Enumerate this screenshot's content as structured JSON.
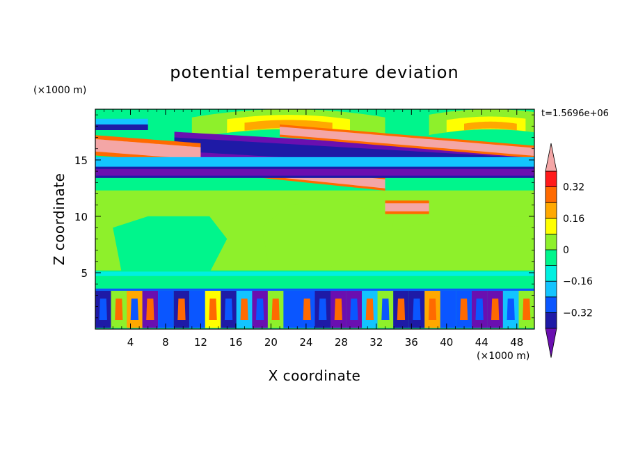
{
  "chart_data": {
    "type": "heatmap",
    "title": "potential temperature deviation",
    "xlabel": "X coordinate",
    "ylabel": "Z coordinate",
    "x_unit": "(×1000 m)",
    "y_unit": "(×1000 m)",
    "time_label": "t=1.5696e+06",
    "xlim": [
      0,
      50
    ],
    "ylim": [
      0,
      19.5
    ],
    "x_ticks": [
      4,
      8,
      12,
      16,
      20,
      24,
      28,
      32,
      36,
      40,
      44,
      48
    ],
    "y_ticks": [
      5,
      10,
      15
    ],
    "colorbar": {
      "levels": [
        -0.4,
        -0.32,
        -0.24,
        -0.16,
        -0.08,
        0,
        0.08,
        0.16,
        0.24,
        0.32,
        0.4
      ],
      "labels": [
        "0.32",
        "0.16",
        "0",
        "−0.16",
        "−0.32"
      ],
      "label_values": [
        0.32,
        0.16,
        0,
        -0.16,
        -0.32
      ],
      "colors": [
        "#6a0fb0",
        "#1e1aa6",
        "#0a56ff",
        "#13c4ff",
        "#00f0e0",
        "#00f58c",
        "#8ef02b",
        "#ffff00",
        "#ffa800",
        "#ff6a00",
        "#ff1a1a",
        "#f4a6a6"
      ],
      "over_color": "#f4a6a6",
      "under_color": "#6a0fb0"
    },
    "background_color": "#00f58c"
  }
}
